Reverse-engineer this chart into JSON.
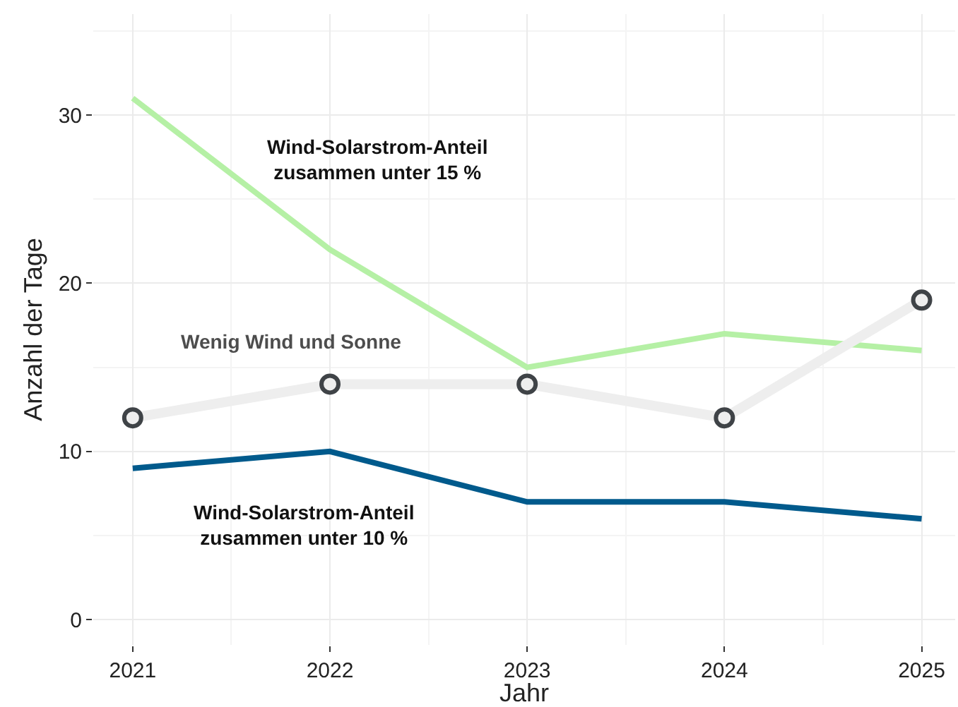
{
  "chart_data": {
    "type": "line",
    "xlabel": "Jahr",
    "ylabel": "Anzahl der Tage",
    "x": [
      2021,
      2022,
      2023,
      2024,
      2025
    ],
    "series": [
      {
        "color": "#b5f0a5",
        "values": [
          31,
          22,
          15,
          17,
          16
        ],
        "marker": "none"
      },
      {
        "color": "#eeeeee",
        "values": [
          12,
          14,
          14,
          12,
          19
        ],
        "marker": "circle"
      },
      {
        "color": "#005a8c",
        "values": [
          9,
          10,
          7,
          7,
          6
        ],
        "marker": "none"
      }
    ],
    "xlim": [
      2020.8,
      2025.17
    ],
    "xticks": [
      2021,
      2022,
      2023,
      2024,
      2025
    ],
    "ylim": [
      -1.5,
      36
    ],
    "yticks": [
      0,
      10,
      20,
      30
    ],
    "grid": true,
    "line_style": "solid",
    "annotations": [
      "Wind-Solarstrom-Anteil\nzusammen unter 15 %",
      "Wenig Wind und Sonne",
      "Wind-Solarstrom-Anteil\nzusammen unter 10 %"
    ]
  }
}
